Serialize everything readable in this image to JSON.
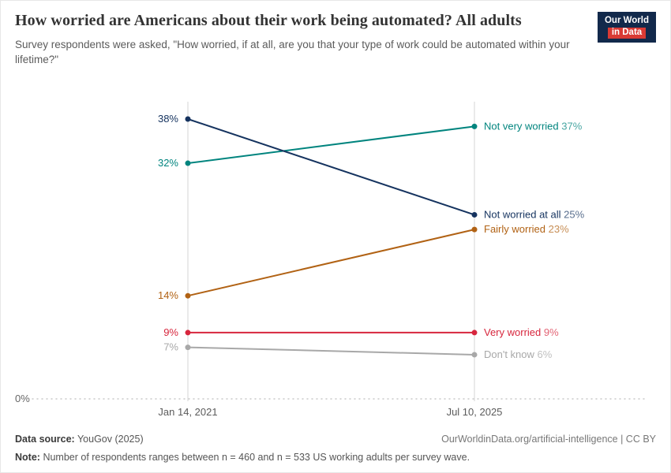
{
  "header": {
    "title": "How worried are Americans about their work being automated? All adults",
    "subtitle": "Survey respondents were asked, \"How worried, if at all, are you that your type of work could be automated within your lifetime?\""
  },
  "logo": {
    "line1": "Our World",
    "line2": "in Data",
    "bg_color": "#12294b",
    "accent_color": "#d93a34"
  },
  "chart_data": {
    "type": "line",
    "subtype": "slope",
    "x": [
      "Jan 14, 2021",
      "Jul 10, 2025"
    ],
    "series": [
      {
        "name": "Not very worried",
        "values": [
          32,
          37
        ],
        "color": "#00847e"
      },
      {
        "name": "Not worried at all",
        "values": [
          38,
          25
        ],
        "color": "#15335f"
      },
      {
        "name": "Fairly worried",
        "values": [
          14,
          23
        ],
        "color": "#b16214"
      },
      {
        "name": "Very worried",
        "values": [
          9,
          9
        ],
        "color": "#d7263d"
      },
      {
        "name": "Don't know",
        "values": [
          7,
          6
        ],
        "color": "#a8a8a8"
      }
    ],
    "ylim": [
      0,
      40
    ],
    "baseline_label": "0%",
    "grid": "vertical-only",
    "legend_position": "right-inline"
  },
  "footer": {
    "source_label": "Data source:",
    "source_value": "YouGov (2025)",
    "link": "OurWorldinData.org/artificial-intelligence | CC BY",
    "note_label": "Note:",
    "note_value": "Number of respondents ranges between n = 460 and n = 533 US working adults per survey wave."
  }
}
